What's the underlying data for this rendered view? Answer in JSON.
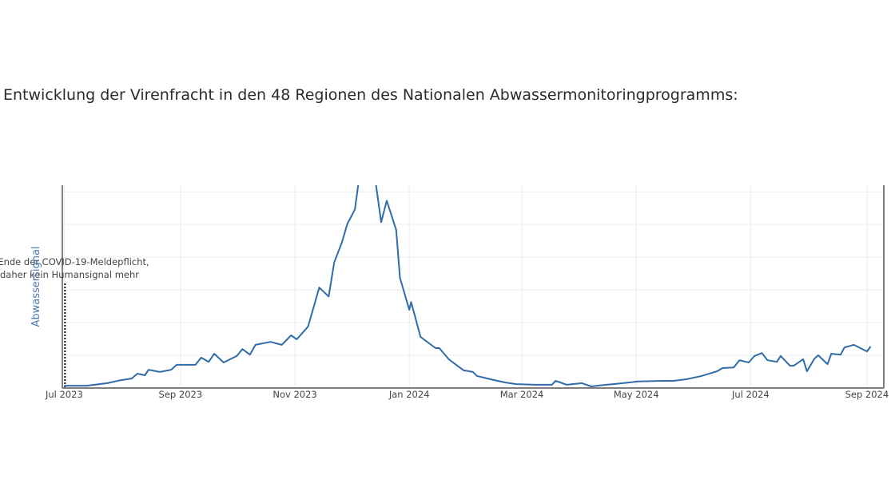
{
  "title": "Entwicklung der Virenfracht in den 48 Regionen des Nationalen Abwassermonitoringprogramms:",
  "chart_data": {
    "type": "line",
    "title": "Entwicklung der Virenfracht in den 48 Regionen des Nationalen Abwassermonitoringprogramms:",
    "xlabel": "",
    "ylabel": "Abwassersignal",
    "xlim": [
      "2023-06-30",
      "2024-09-10"
    ],
    "ylim": [
      0,
      6.2
    ],
    "y_tick_labels_shown": false,
    "grid": true,
    "x_ticks": [
      {
        "date": "2023-07-01",
        "label": "Jul 2023"
      },
      {
        "date": "2023-09-01",
        "label": "Sep 2023"
      },
      {
        "date": "2023-11-01",
        "label": "Nov 2023"
      },
      {
        "date": "2024-01-01",
        "label": "Jan 2024"
      },
      {
        "date": "2024-03-01",
        "label": "Mar 2024"
      },
      {
        "date": "2024-05-01",
        "label": "May 2024"
      },
      {
        "date": "2024-07-01",
        "label": "Jul 2024"
      },
      {
        "date": "2024-09-01",
        "label": "Sep 2024"
      }
    ],
    "y_gridlines": [
      1,
      2,
      3,
      4,
      5,
      6
    ],
    "line_color": "#2f6ca8",
    "annotation": {
      "date": "2023-07-01",
      "lines": [
        "Ende der COVID-19-Meldepflicht,",
        "daher kein Humansignal mehr"
      ],
      "line_style": "dotted"
    },
    "series": [
      {
        "x": [
          "2023-07-01",
          "2023-07-13",
          "2023-07-24",
          "2023-07-31",
          "2023-08-06",
          "2023-08-09",
          "2023-08-13",
          "2023-08-15",
          "2023-08-21",
          "2023-08-27",
          "2023-08-30",
          "2023-09-09",
          "2023-09-12",
          "2023-09-16",
          "2023-09-19",
          "2023-09-24",
          "2023-10-01",
          "2023-10-04",
          "2023-10-08",
          "2023-10-11",
          "2023-10-19",
          "2023-10-25",
          "2023-10-30",
          "2023-11-02",
          "2023-11-08",
          "2023-11-14",
          "2023-11-19",
          "2023-11-22",
          "2023-11-26",
          "2023-11-29",
          "2023-12-03",
          "2023-12-05",
          "2023-12-10",
          "2023-12-14",
          "2023-12-17",
          "2023-12-20",
          "2023-12-25",
          "2023-12-27",
          "2024-01-01",
          "2024-01-02",
          "2024-01-07",
          "2024-01-15",
          "2024-01-17",
          "2024-01-22",
          "2024-01-30",
          "2024-02-04",
          "2024-02-06",
          "2024-02-13",
          "2024-02-21",
          "2024-02-27",
          "2024-03-08",
          "2024-03-17",
          "2024-03-19",
          "2024-03-25",
          "2024-04-02",
          "2024-04-07",
          "2024-04-15",
          "2024-04-24",
          "2024-05-02",
          "2024-05-15",
          "2024-05-21",
          "2024-05-28",
          "2024-06-05",
          "2024-06-13",
          "2024-06-16",
          "2024-06-22",
          "2024-06-25",
          "2024-06-30",
          "2024-07-03",
          "2024-07-07",
          "2024-07-10",
          "2024-07-15",
          "2024-07-17",
          "2024-07-22",
          "2024-07-24",
          "2024-07-29",
          "2024-07-31",
          "2024-08-04",
          "2024-08-06",
          "2024-08-11",
          "2024-08-13",
          "2024-08-18",
          "2024-08-20",
          "2024-08-25",
          "2024-09-01",
          "2024-09-03"
        ],
        "y": [
          0.07,
          0.07,
          0.15,
          0.24,
          0.29,
          0.44,
          0.39,
          0.56,
          0.49,
          0.56,
          0.71,
          0.71,
          0.93,
          0.8,
          1.05,
          0.78,
          0.98,
          1.19,
          1.02,
          1.32,
          1.41,
          1.32,
          1.61,
          1.49,
          1.88,
          3.07,
          2.8,
          3.85,
          4.44,
          5.02,
          5.46,
          6.3,
          7.2,
          6.3,
          5.07,
          5.73,
          4.83,
          3.37,
          2.39,
          2.63,
          1.56,
          1.22,
          1.22,
          0.88,
          0.54,
          0.49,
          0.37,
          0.27,
          0.17,
          0.12,
          0.1,
          0.1,
          0.22,
          0.1,
          0.15,
          0.05,
          0.1,
          0.15,
          0.2,
          0.22,
          0.22,
          0.27,
          0.37,
          0.51,
          0.61,
          0.63,
          0.85,
          0.78,
          0.98,
          1.07,
          0.85,
          0.8,
          0.98,
          0.68,
          0.68,
          0.88,
          0.51,
          0.9,
          1.0,
          0.73,
          1.05,
          1.02,
          1.24,
          1.32,
          1.12,
          1.27
        ]
      }
    ]
  }
}
